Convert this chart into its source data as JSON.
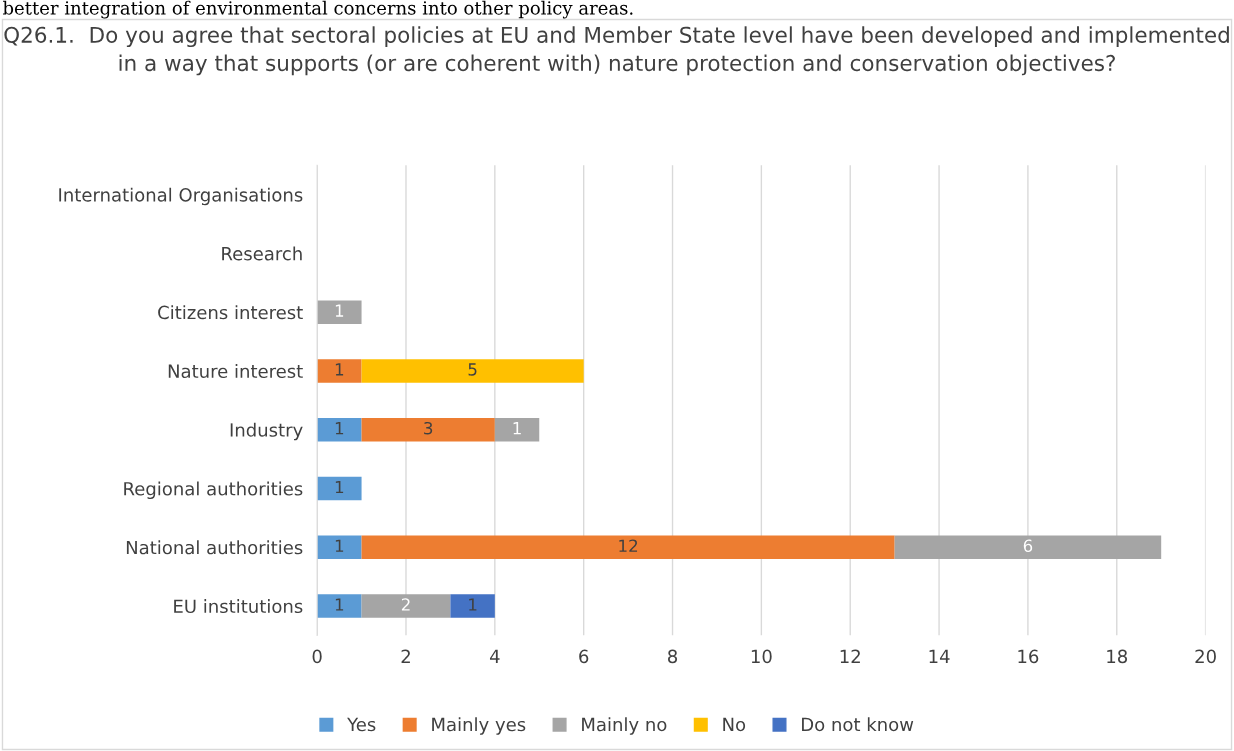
{
  "chart_data": {
    "type": "bar",
    "orientation": "horizontal",
    "stacked": true,
    "title": "Q26.1.  Do you agree that sectoral policies at EU and Member State level have been developed and implemented in a way that supports (or are coherent with) nature protection and conservation objectives?",
    "annotations": [
      "better integration of environmental concerns into other policy areas."
    ],
    "categories": [
      "International Organisations",
      "Research",
      "Citizens interest",
      "Nature interest",
      "Industry",
      "Regional authorities",
      "National authorities",
      "EU institutions"
    ],
    "series": [
      {
        "name": "Yes",
        "color": "#5b9bd5",
        "values": [
          null,
          null,
          null,
          null,
          1,
          1,
          1,
          1
        ]
      },
      {
        "name": "Mainly yes",
        "color": "#ed7d31",
        "values": [
          null,
          null,
          null,
          1,
          3,
          null,
          12,
          null
        ]
      },
      {
        "name": "Mainly no",
        "color": "#a5a5a5",
        "values": [
          null,
          null,
          1,
          null,
          1,
          null,
          6,
          2
        ]
      },
      {
        "name": "No",
        "color": "#ffc000",
        "values": [
          null,
          null,
          null,
          5,
          null,
          null,
          null,
          null
        ]
      },
      {
        "name": "Do not know",
        "color": "#4472c4",
        "values": [
          null,
          null,
          null,
          null,
          null,
          null,
          null,
          1
        ]
      }
    ],
    "xlim": [
      0,
      20
    ],
    "xticks": [
      0,
      2,
      4,
      6,
      8,
      10,
      12,
      14,
      16,
      18,
      20
    ],
    "grid": "x",
    "legend": "bottom",
    "data_labels": true
  }
}
